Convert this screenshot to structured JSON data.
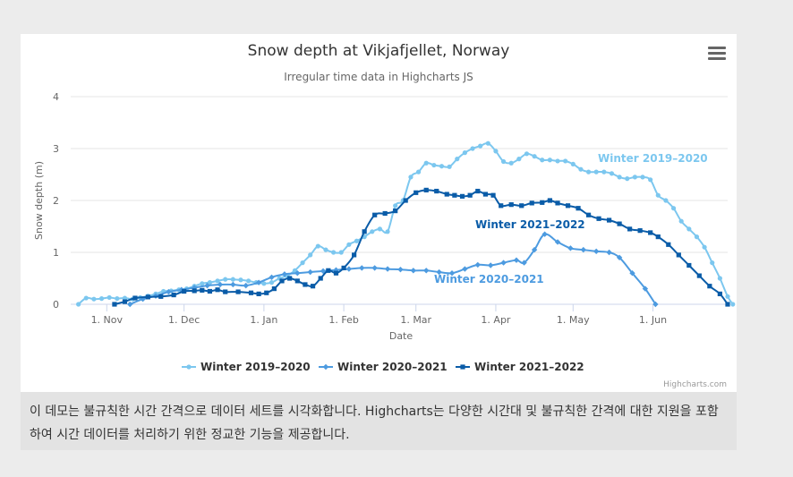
{
  "caption": "이 데모는 불규칙한 시간 간격으로 데이터 세트를 시각화합니다. Highcharts는 다양한 시간대 및 불규칙한 간격에 대한 지원을 포함하여 시간 데이터를 처리하기 위한 정교한 기능을 제공합니다.",
  "chart_data": {
    "type": "line",
    "title": "Snow depth at Vikjafjellet, Norway",
    "subtitle": "Irregular time data in Highcharts JS",
    "xlabel": "Date",
    "ylabel": "Snow depth (m)",
    "ylim": [
      0,
      4
    ],
    "yticks": [
      "0",
      "1",
      "2",
      "3",
      "4"
    ],
    "xlim": [
      "1970-10-18",
      "1971-06-30"
    ],
    "xticks": [
      {
        "date": "1970-11-01",
        "label": "1. Nov"
      },
      {
        "date": "1970-12-01",
        "label": "1. Dec"
      },
      {
        "date": "1971-01-01",
        "label": "1. Jan"
      },
      {
        "date": "1971-02-01",
        "label": "1. Feb"
      },
      {
        "date": "1971-03-01",
        "label": "1. Mar"
      },
      {
        "date": "1971-04-01",
        "label": "1. Apr"
      },
      {
        "date": "1971-05-01",
        "label": "1. May"
      },
      {
        "date": "1971-06-01",
        "label": "1. Jun"
      }
    ],
    "grid": true,
    "legend": "bottom-center",
    "credits": "Highcharts.com",
    "series": [
      {
        "name": "Winter 2019-2020",
        "label": "Winter 2019–2020",
        "color": "#7cc7ef",
        "marker": "circle",
        "points": [
          [
            "1970-10-21",
            0.0
          ],
          [
            "1970-10-24",
            0.12
          ],
          [
            "1970-10-27",
            0.1
          ],
          [
            "1970-10-30",
            0.11
          ],
          [
            "1970-11-02",
            0.13
          ],
          [
            "1970-11-05",
            0.11
          ],
          [
            "1970-11-08",
            0.12
          ],
          [
            "1970-11-11",
            0.1
          ],
          [
            "1970-11-14",
            0.13
          ],
          [
            "1970-11-17",
            0.16
          ],
          [
            "1970-11-20",
            0.2
          ],
          [
            "1970-11-23",
            0.25
          ],
          [
            "1970-11-26",
            0.26
          ],
          [
            "1970-11-29",
            0.28
          ],
          [
            "1970-12-02",
            0.3
          ],
          [
            "1970-12-05",
            0.35
          ],
          [
            "1970-12-08",
            0.4
          ],
          [
            "1970-12-11",
            0.42
          ],
          [
            "1970-12-14",
            0.45
          ],
          [
            "1970-12-17",
            0.48
          ],
          [
            "1970-12-20",
            0.48
          ],
          [
            "1970-12-23",
            0.47
          ],
          [
            "1970-12-26",
            0.45
          ],
          [
            "1970-12-29",
            0.42
          ],
          [
            "1971-01-01",
            0.4
          ],
          [
            "1971-01-04",
            0.42
          ],
          [
            "1971-01-07",
            0.5
          ],
          [
            "1971-01-10",
            0.55
          ],
          [
            "1971-01-13",
            0.65
          ],
          [
            "1971-01-16",
            0.8
          ],
          [
            "1971-01-19",
            0.95
          ],
          [
            "1971-01-22",
            1.12
          ],
          [
            "1971-01-25",
            1.05
          ],
          [
            "1971-01-28",
            1.0
          ],
          [
            "1971-01-31",
            1.0
          ],
          [
            "1971-02-03",
            1.15
          ],
          [
            "1971-02-06",
            1.22
          ],
          [
            "1971-02-09",
            1.3
          ],
          [
            "1971-02-12",
            1.4
          ],
          [
            "1971-02-15",
            1.45
          ],
          [
            "1971-02-18",
            1.4
          ],
          [
            "1971-02-21",
            1.9
          ],
          [
            "1971-02-24",
            2.0
          ],
          [
            "1971-02-27",
            2.45
          ],
          [
            "1971-03-02",
            2.55
          ],
          [
            "1971-03-05",
            2.72
          ],
          [
            "1971-03-08",
            2.68
          ],
          [
            "1971-03-11",
            2.66
          ],
          [
            "1971-03-14",
            2.65
          ],
          [
            "1971-03-17",
            2.8
          ],
          [
            "1971-03-20",
            2.92
          ],
          [
            "1971-03-23",
            3.0
          ],
          [
            "1971-03-26",
            3.05
          ],
          [
            "1971-03-29",
            3.1
          ],
          [
            "1971-04-01",
            2.95
          ],
          [
            "1971-04-04",
            2.75
          ],
          [
            "1971-04-07",
            2.72
          ],
          [
            "1971-04-10",
            2.8
          ],
          [
            "1971-04-13",
            2.9
          ],
          [
            "1971-04-16",
            2.85
          ],
          [
            "1971-04-19",
            2.78
          ],
          [
            "1971-04-22",
            2.78
          ],
          [
            "1971-04-25",
            2.76
          ],
          [
            "1971-04-28",
            2.76
          ],
          [
            "1971-05-01",
            2.7
          ],
          [
            "1971-05-04",
            2.6
          ],
          [
            "1971-05-07",
            2.55
          ],
          [
            "1971-05-10",
            2.55
          ],
          [
            "1971-05-13",
            2.55
          ],
          [
            "1971-05-16",
            2.52
          ],
          [
            "1971-05-19",
            2.45
          ],
          [
            "1971-05-22",
            2.42
          ],
          [
            "1971-05-25",
            2.45
          ],
          [
            "1971-05-28",
            2.45
          ],
          [
            "1971-05-31",
            2.4
          ],
          [
            "1971-06-03",
            2.1
          ],
          [
            "1971-06-06",
            2.0
          ],
          [
            "1971-06-09",
            1.85
          ],
          [
            "1971-06-12",
            1.6
          ],
          [
            "1971-06-15",
            1.45
          ],
          [
            "1971-06-18",
            1.3
          ],
          [
            "1971-06-21",
            1.1
          ],
          [
            "1971-06-24",
            0.8
          ],
          [
            "1971-06-27",
            0.5
          ],
          [
            "1971-06-30",
            0.15
          ],
          [
            "1971-07-02",
            0.0
          ]
        ]
      },
      {
        "name": "Winter 2020-2021",
        "label": "Winter 2020–2021",
        "color": "#4d9be0",
        "marker": "diamond",
        "points": [
          [
            "1970-11-10",
            0.0
          ],
          [
            "1970-11-15",
            0.1
          ],
          [
            "1970-11-20",
            0.16
          ],
          [
            "1970-11-25",
            0.24
          ],
          [
            "1970-11-30",
            0.28
          ],
          [
            "1970-12-05",
            0.32
          ],
          [
            "1970-12-10",
            0.36
          ],
          [
            "1970-12-15",
            0.38
          ],
          [
            "1970-12-20",
            0.38
          ],
          [
            "1970-12-25",
            0.36
          ],
          [
            "1970-12-30",
            0.42
          ],
          [
            "1971-01-04",
            0.52
          ],
          [
            "1971-01-09",
            0.58
          ],
          [
            "1971-01-14",
            0.6
          ],
          [
            "1971-01-19",
            0.62
          ],
          [
            "1971-01-24",
            0.64
          ],
          [
            "1971-01-29",
            0.66
          ],
          [
            "1971-02-03",
            0.68
          ],
          [
            "1971-02-08",
            0.7
          ],
          [
            "1971-02-13",
            0.7
          ],
          [
            "1971-02-18",
            0.68
          ],
          [
            "1971-02-23",
            0.67
          ],
          [
            "1971-02-28",
            0.65
          ],
          [
            "1971-03-05",
            0.65
          ],
          [
            "1971-03-10",
            0.62
          ],
          [
            "1971-03-15",
            0.6
          ],
          [
            "1971-03-20",
            0.68
          ],
          [
            "1971-03-25",
            0.76
          ],
          [
            "1971-03-30",
            0.75
          ],
          [
            "1971-04-04",
            0.8
          ],
          [
            "1971-04-09",
            0.85
          ],
          [
            "1971-04-12",
            0.8
          ],
          [
            "1971-04-16",
            1.05
          ],
          [
            "1971-04-20",
            1.35
          ],
          [
            "1971-04-25",
            1.2
          ],
          [
            "1971-04-30",
            1.08
          ],
          [
            "1971-05-05",
            1.05
          ],
          [
            "1971-05-10",
            1.02
          ],
          [
            "1971-05-15",
            1.0
          ],
          [
            "1971-05-19",
            0.9
          ],
          [
            "1971-05-24",
            0.6
          ],
          [
            "1971-05-29",
            0.3
          ],
          [
            "1971-06-02",
            0.0
          ]
        ]
      },
      {
        "name": "Winter 2021-2022",
        "label": "Winter 2021–2022",
        "color": "#0a5ca8",
        "marker": "square",
        "points": [
          [
            "1970-11-04",
            0.0
          ],
          [
            "1970-11-08",
            0.05
          ],
          [
            "1970-11-12",
            0.12
          ],
          [
            "1970-11-17",
            0.14
          ],
          [
            "1970-11-22",
            0.15
          ],
          [
            "1970-11-27",
            0.18
          ],
          [
            "1970-12-01",
            0.25
          ],
          [
            "1970-12-05",
            0.26
          ],
          [
            "1970-12-08",
            0.27
          ],
          [
            "1970-12-11",
            0.25
          ],
          [
            "1970-12-14",
            0.28
          ],
          [
            "1970-12-17",
            0.24
          ],
          [
            "1970-12-22",
            0.24
          ],
          [
            "1970-12-27",
            0.22
          ],
          [
            "1970-12-30",
            0.2
          ],
          [
            "1971-01-02",
            0.22
          ],
          [
            "1971-01-05",
            0.3
          ],
          [
            "1971-01-08",
            0.45
          ],
          [
            "1971-01-11",
            0.5
          ],
          [
            "1971-01-14",
            0.45
          ],
          [
            "1971-01-17",
            0.38
          ],
          [
            "1971-01-20",
            0.35
          ],
          [
            "1971-01-23",
            0.5
          ],
          [
            "1971-01-26",
            0.65
          ],
          [
            "1971-01-29",
            0.6
          ],
          [
            "1971-02-01",
            0.7
          ],
          [
            "1971-02-05",
            0.95
          ],
          [
            "1971-02-09",
            1.4
          ],
          [
            "1971-02-13",
            1.72
          ],
          [
            "1971-02-17",
            1.75
          ],
          [
            "1971-02-21",
            1.8
          ],
          [
            "1971-02-25",
            2.0
          ],
          [
            "1971-03-01",
            2.15
          ],
          [
            "1971-03-05",
            2.2
          ],
          [
            "1971-03-09",
            2.18
          ],
          [
            "1971-03-13",
            2.12
          ],
          [
            "1971-03-16",
            2.1
          ],
          [
            "1971-03-19",
            2.08
          ],
          [
            "1971-03-22",
            2.1
          ],
          [
            "1971-03-25",
            2.18
          ],
          [
            "1971-03-28",
            2.12
          ],
          [
            "1971-03-31",
            2.1
          ],
          [
            "1971-04-03",
            1.9
          ],
          [
            "1971-04-07",
            1.92
          ],
          [
            "1971-04-11",
            1.9
          ],
          [
            "1971-04-15",
            1.95
          ],
          [
            "1971-04-19",
            1.96
          ],
          [
            "1971-04-22",
            2.0
          ],
          [
            "1971-04-25",
            1.95
          ],
          [
            "1971-04-29",
            1.9
          ],
          [
            "1971-05-03",
            1.85
          ],
          [
            "1971-05-07",
            1.72
          ],
          [
            "1971-05-11",
            1.65
          ],
          [
            "1971-05-15",
            1.62
          ],
          [
            "1971-05-19",
            1.55
          ],
          [
            "1971-05-23",
            1.45
          ],
          [
            "1971-05-27",
            1.42
          ],
          [
            "1971-05-31",
            1.38
          ],
          [
            "1971-06-03",
            1.3
          ],
          [
            "1971-06-07",
            1.15
          ],
          [
            "1971-06-11",
            0.95
          ],
          [
            "1971-06-15",
            0.75
          ],
          [
            "1971-06-19",
            0.55
          ],
          [
            "1971-06-23",
            0.35
          ],
          [
            "1971-06-27",
            0.2
          ],
          [
            "1971-06-30",
            0.0
          ]
        ]
      }
    ]
  }
}
